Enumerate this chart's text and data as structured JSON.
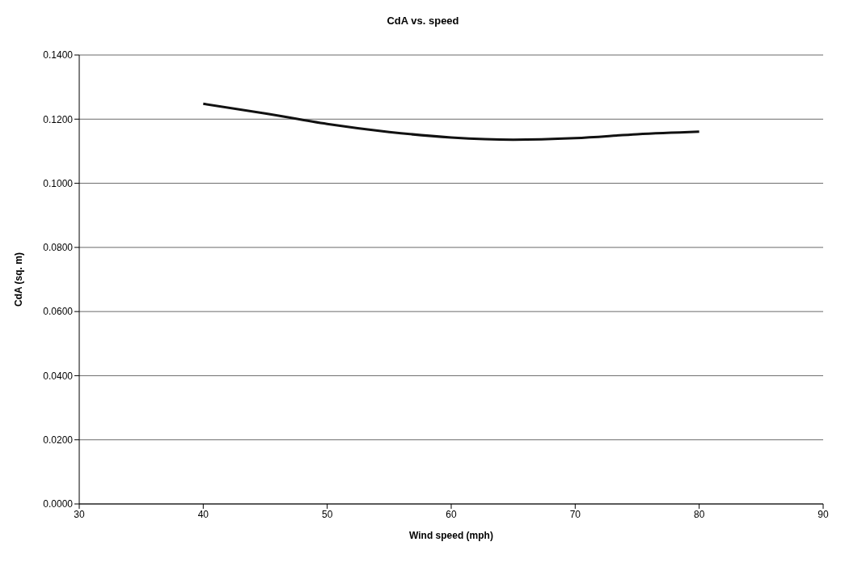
{
  "chart_data": {
    "type": "line",
    "title": "CdA vs. speed",
    "xlabel": "Wind speed (mph)",
    "ylabel": "CdA (sq. m)",
    "x": [
      40,
      45,
      50,
      55,
      60,
      65,
      70,
      75,
      80
    ],
    "series": [
      {
        "color": "#111111",
        "values": [
          0.1248,
          0.1218,
          0.1185,
          0.116,
          0.1143,
          0.1136,
          0.1141,
          0.1153,
          0.1161
        ]
      }
    ],
    "xlim": [
      30,
      90
    ],
    "xticks": [
      30,
      40,
      50,
      60,
      70,
      80,
      90
    ],
    "ylim": [
      0,
      0.14
    ],
    "yticks": [
      {
        "value": 0,
        "label": "0.0000"
      },
      {
        "value": 0.02,
        "label": "0.0200"
      },
      {
        "value": 0.04,
        "label": "0.0400"
      },
      {
        "value": 0.06,
        "label": "0.0600"
      },
      {
        "value": 0.08,
        "label": "0.0800"
      },
      {
        "value": 0.1,
        "label": "0.1000"
      },
      {
        "value": 0.12,
        "label": "0.1200"
      },
      {
        "value": 0.14,
        "label": "0.1400"
      }
    ],
    "grid": "y",
    "marker": "none",
    "line_style": "solid"
  }
}
